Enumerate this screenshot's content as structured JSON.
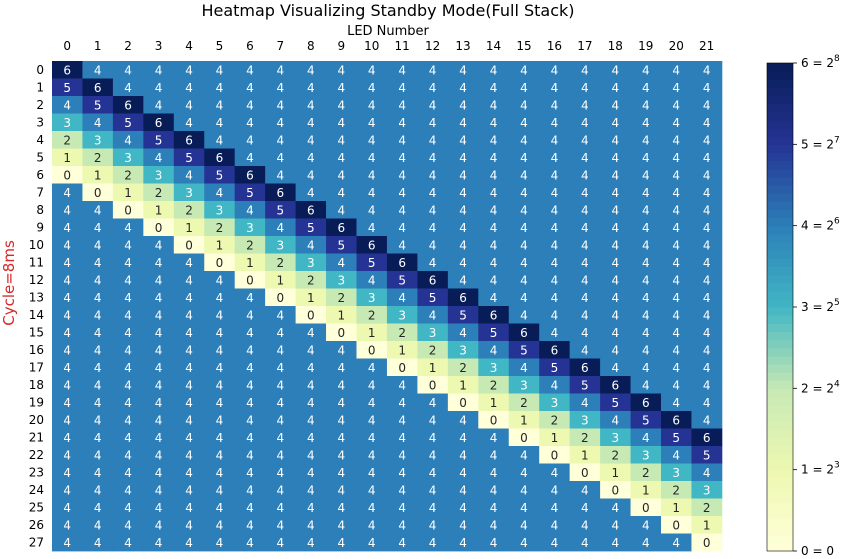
{
  "chart_data": {
    "type": "heatmap",
    "title": "Heatmap Visualizing Standby Mode(Full Stack)",
    "xlabel": "LED Number",
    "ylabel": "Cycle=8ms",
    "x_tick_position": "top",
    "vmin": 0,
    "vmax": 6,
    "colormap": "YlGnBu",
    "x_categories": [
      "0",
      "1",
      "2",
      "3",
      "4",
      "5",
      "6",
      "7",
      "8",
      "9",
      "10",
      "11",
      "12",
      "13",
      "14",
      "15",
      "16",
      "17",
      "18",
      "19",
      "20",
      "21"
    ],
    "y_categories": [
      "0",
      "1",
      "2",
      "3",
      "4",
      "5",
      "6",
      "7",
      "8",
      "9",
      "10",
      "11",
      "12",
      "13",
      "14",
      "15",
      "16",
      "17",
      "18",
      "19",
      "20",
      "21",
      "22",
      "23",
      "24",
      "25",
      "26",
      "27"
    ],
    "values": [
      [
        6,
        4,
        4,
        4,
        4,
        4,
        4,
        4,
        4,
        4,
        4,
        4,
        4,
        4,
        4,
        4,
        4,
        4,
        4,
        4,
        4,
        4
      ],
      [
        5,
        6,
        4,
        4,
        4,
        4,
        4,
        4,
        4,
        4,
        4,
        4,
        4,
        4,
        4,
        4,
        4,
        4,
        4,
        4,
        4,
        4
      ],
      [
        4,
        5,
        6,
        4,
        4,
        4,
        4,
        4,
        4,
        4,
        4,
        4,
        4,
        4,
        4,
        4,
        4,
        4,
        4,
        4,
        4,
        4
      ],
      [
        3,
        4,
        5,
        6,
        4,
        4,
        4,
        4,
        4,
        4,
        4,
        4,
        4,
        4,
        4,
        4,
        4,
        4,
        4,
        4,
        4,
        4
      ],
      [
        2,
        3,
        4,
        5,
        6,
        4,
        4,
        4,
        4,
        4,
        4,
        4,
        4,
        4,
        4,
        4,
        4,
        4,
        4,
        4,
        4,
        4
      ],
      [
        1,
        2,
        3,
        4,
        5,
        6,
        4,
        4,
        4,
        4,
        4,
        4,
        4,
        4,
        4,
        4,
        4,
        4,
        4,
        4,
        4,
        4
      ],
      [
        0,
        1,
        2,
        3,
        4,
        5,
        6,
        4,
        4,
        4,
        4,
        4,
        4,
        4,
        4,
        4,
        4,
        4,
        4,
        4,
        4,
        4
      ],
      [
        4,
        0,
        1,
        2,
        3,
        4,
        5,
        6,
        4,
        4,
        4,
        4,
        4,
        4,
        4,
        4,
        4,
        4,
        4,
        4,
        4,
        4
      ],
      [
        4,
        4,
        0,
        1,
        2,
        3,
        4,
        5,
        6,
        4,
        4,
        4,
        4,
        4,
        4,
        4,
        4,
        4,
        4,
        4,
        4,
        4
      ],
      [
        4,
        4,
        4,
        0,
        1,
        2,
        3,
        4,
        5,
        6,
        4,
        4,
        4,
        4,
        4,
        4,
        4,
        4,
        4,
        4,
        4,
        4
      ],
      [
        4,
        4,
        4,
        4,
        0,
        1,
        2,
        3,
        4,
        5,
        6,
        4,
        4,
        4,
        4,
        4,
        4,
        4,
        4,
        4,
        4,
        4
      ],
      [
        4,
        4,
        4,
        4,
        4,
        0,
        1,
        2,
        3,
        4,
        5,
        6,
        4,
        4,
        4,
        4,
        4,
        4,
        4,
        4,
        4,
        4
      ],
      [
        4,
        4,
        4,
        4,
        4,
        4,
        0,
        1,
        2,
        3,
        4,
        5,
        6,
        4,
        4,
        4,
        4,
        4,
        4,
        4,
        4,
        4
      ],
      [
        4,
        4,
        4,
        4,
        4,
        4,
        4,
        0,
        1,
        2,
        3,
        4,
        5,
        6,
        4,
        4,
        4,
        4,
        4,
        4,
        4,
        4
      ],
      [
        4,
        4,
        4,
        4,
        4,
        4,
        4,
        4,
        0,
        1,
        2,
        3,
        4,
        5,
        6,
        4,
        4,
        4,
        4,
        4,
        4,
        4
      ],
      [
        4,
        4,
        4,
        4,
        4,
        4,
        4,
        4,
        4,
        0,
        1,
        2,
        3,
        4,
        5,
        6,
        4,
        4,
        4,
        4,
        4,
        4
      ],
      [
        4,
        4,
        4,
        4,
        4,
        4,
        4,
        4,
        4,
        4,
        0,
        1,
        2,
        3,
        4,
        5,
        6,
        4,
        4,
        4,
        4,
        4
      ],
      [
        4,
        4,
        4,
        4,
        4,
        4,
        4,
        4,
        4,
        4,
        4,
        0,
        1,
        2,
        3,
        4,
        5,
        6,
        4,
        4,
        4,
        4
      ],
      [
        4,
        4,
        4,
        4,
        4,
        4,
        4,
        4,
        4,
        4,
        4,
        4,
        0,
        1,
        2,
        3,
        4,
        5,
        6,
        4,
        4,
        4
      ],
      [
        4,
        4,
        4,
        4,
        4,
        4,
        4,
        4,
        4,
        4,
        4,
        4,
        4,
        0,
        1,
        2,
        3,
        4,
        5,
        6,
        4,
        4
      ],
      [
        4,
        4,
        4,
        4,
        4,
        4,
        4,
        4,
        4,
        4,
        4,
        4,
        4,
        4,
        0,
        1,
        2,
        3,
        4,
        5,
        6,
        4
      ],
      [
        4,
        4,
        4,
        4,
        4,
        4,
        4,
        4,
        4,
        4,
        4,
        4,
        4,
        4,
        4,
        0,
        1,
        2,
        3,
        4,
        5,
        6
      ],
      [
        4,
        4,
        4,
        4,
        4,
        4,
        4,
        4,
        4,
        4,
        4,
        4,
        4,
        4,
        4,
        4,
        0,
        1,
        2,
        3,
        4,
        5
      ],
      [
        4,
        4,
        4,
        4,
        4,
        4,
        4,
        4,
        4,
        4,
        4,
        4,
        4,
        4,
        4,
        4,
        4,
        0,
        1,
        2,
        3,
        4
      ],
      [
        4,
        4,
        4,
        4,
        4,
        4,
        4,
        4,
        4,
        4,
        4,
        4,
        4,
        4,
        4,
        4,
        4,
        4,
        0,
        1,
        2,
        3
      ],
      [
        4,
        4,
        4,
        4,
        4,
        4,
        4,
        4,
        4,
        4,
        4,
        4,
        4,
        4,
        4,
        4,
        4,
        4,
        4,
        0,
        1,
        2
      ],
      [
        4,
        4,
        4,
        4,
        4,
        4,
        4,
        4,
        4,
        4,
        4,
        4,
        4,
        4,
        4,
        4,
        4,
        4,
        4,
        4,
        0,
        1
      ],
      [
        4,
        4,
        4,
        4,
        4,
        4,
        4,
        4,
        4,
        4,
        4,
        4,
        4,
        4,
        4,
        4,
        4,
        4,
        4,
        4,
        4,
        0
      ]
    ],
    "colorbar_labels": [
      "0 = 0",
      "1 = 2^3",
      "2 = 2^4",
      "3 = 2^5",
      "4 = 2^6",
      "5 = 2^7",
      "6 = 2^8"
    ],
    "colors": {
      "0": "#ffffd9",
      "1": "#edf8b1",
      "2": "#c7e9b4",
      "3": "#41b6c4",
      "4": "#2c7fb8",
      "5": "#253494",
      "6": "#081d58"
    }
  }
}
